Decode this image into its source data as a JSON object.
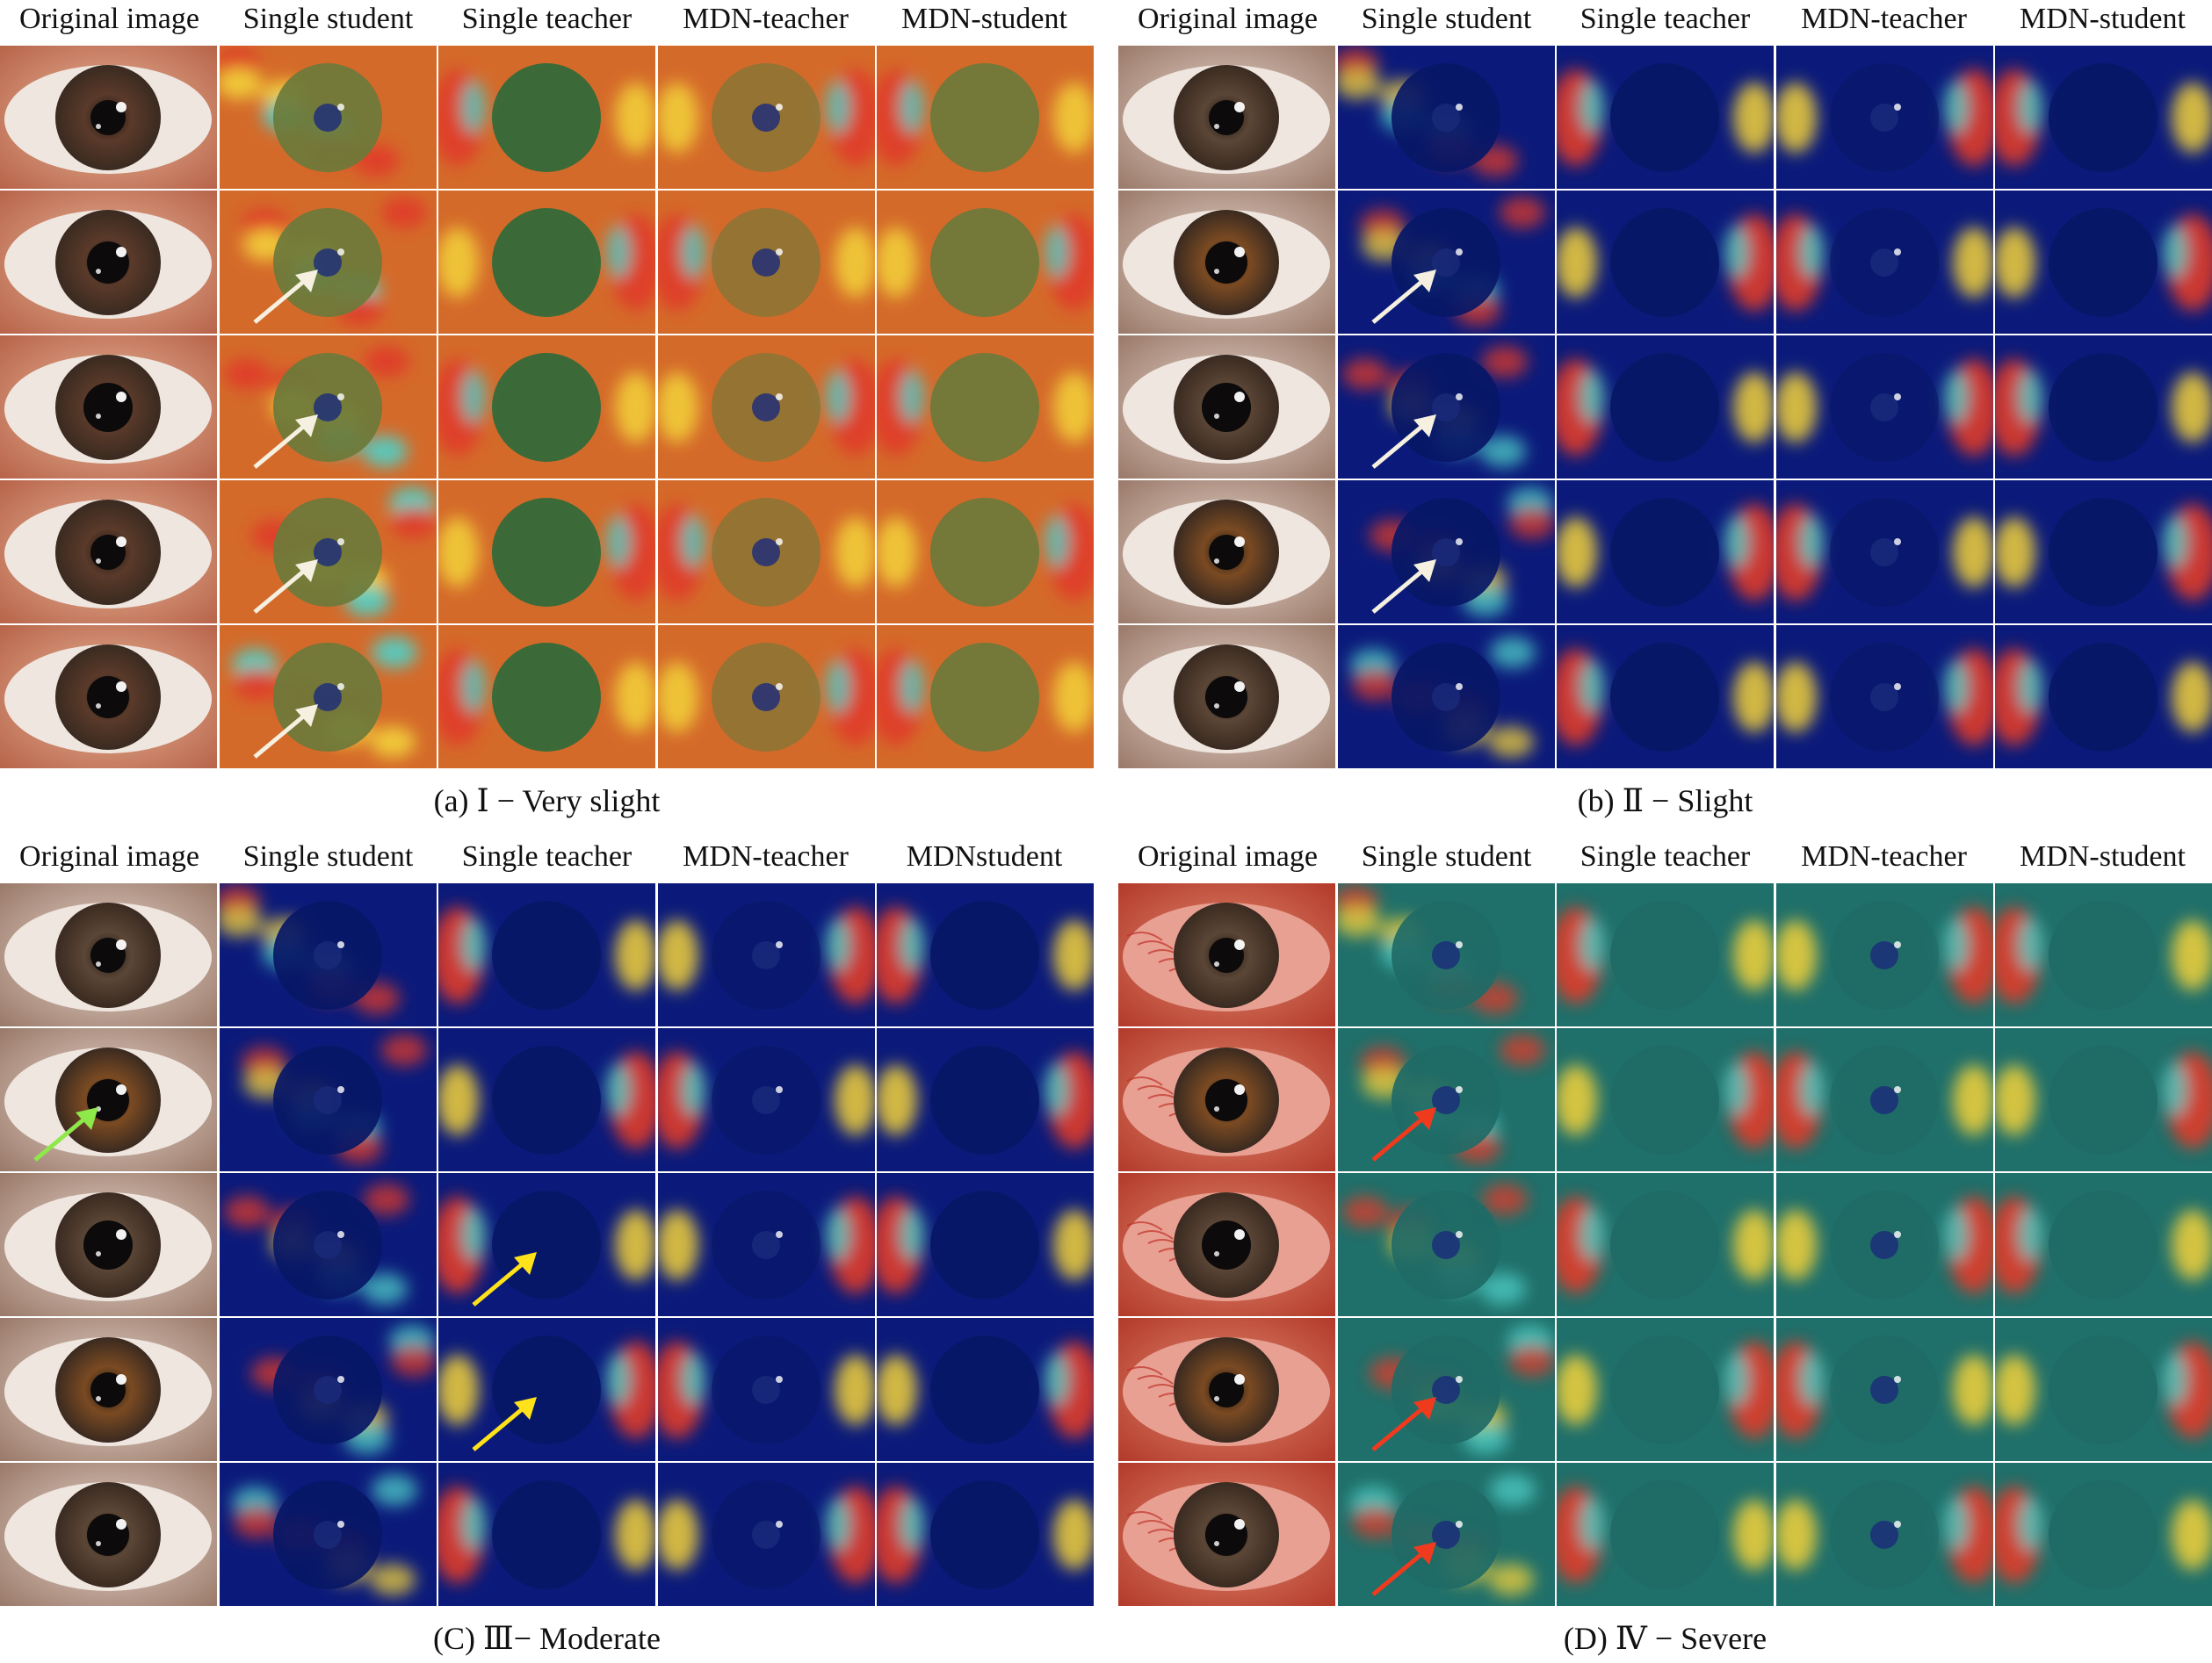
{
  "columns": [
    "Original image",
    "Single student",
    "Single teacher",
    "MDN-teacher",
    "MDN-student"
  ],
  "colors": {
    "heat_blue": "#0b1a7a",
    "heat_teal": "#1f6f6a",
    "heat_red": "#e03a2a",
    "heat_yellow": "#f3d23a",
    "arrow_white": "#f5f0e0",
    "arrow_yellow": "#ffe21a",
    "arrow_green": "#8ee84a",
    "arrow_red": "#f03a1e"
  },
  "panels": [
    {
      "id": "a",
      "caption": "(a)  Ⅰ − Very slight",
      "columns": [
        "Original image",
        "Single student",
        "Single teacher",
        "MDN-teacher",
        "MDN-student"
      ],
      "theme": "warm",
      "arrows": [
        {
          "row": 1,
          "col": 1,
          "color": "arrow_white"
        },
        {
          "row": 2,
          "col": 1,
          "color": "arrow_white"
        },
        {
          "row": 3,
          "col": 1,
          "color": "arrow_white"
        },
        {
          "row": 4,
          "col": 1,
          "color": "arrow_white"
        }
      ]
    },
    {
      "id": "b",
      "caption": "(b)  Ⅱ − Slight",
      "columns": [
        "Original image",
        "Single student",
        "Single teacher",
        "MDN-teacher",
        "MDN-student"
      ],
      "theme": "cool",
      "arrows": [
        {
          "row": 1,
          "col": 1,
          "color": "arrow_white"
        },
        {
          "row": 2,
          "col": 1,
          "color": "arrow_white"
        },
        {
          "row": 3,
          "col": 1,
          "color": "arrow_white"
        }
      ]
    },
    {
      "id": "c",
      "caption": "(C)  Ⅲ− Moderate",
      "columns": [
        "Original image",
        "Single student",
        "Single teacher",
        "MDN-teacher",
        "MDNstudent"
      ],
      "theme": "cool",
      "arrows": [
        {
          "row": 1,
          "col": 0,
          "color": "arrow_green"
        },
        {
          "row": 2,
          "col": 2,
          "color": "arrow_yellow"
        },
        {
          "row": 3,
          "col": 2,
          "color": "arrow_yellow"
        }
      ]
    },
    {
      "id": "d",
      "caption": "(D)  Ⅳ − Severe",
      "columns": [
        "Original image",
        "Single student",
        "Single teacher",
        "MDN-teacher",
        "MDN-student"
      ],
      "theme": "red",
      "arrows": [
        {
          "row": 1,
          "col": 1,
          "color": "arrow_red"
        },
        {
          "row": 3,
          "col": 1,
          "color": "arrow_red"
        },
        {
          "row": 4,
          "col": 1,
          "color": "arrow_red"
        }
      ]
    }
  ]
}
